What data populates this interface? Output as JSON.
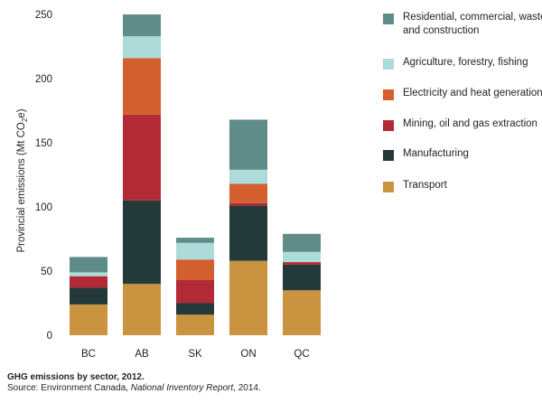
{
  "chart_data": {
    "type": "bar",
    "stacked": true,
    "categories": [
      "BC",
      "AB",
      "SK",
      "ON",
      "QC"
    ],
    "series": [
      {
        "name": "Transport",
        "color": "#c9933f",
        "values": [
          24,
          40,
          16,
          58,
          35
        ]
      },
      {
        "name": "Manufacturing",
        "color": "#243a3a",
        "values": [
          13,
          65,
          9,
          43,
          20
        ]
      },
      {
        "name": "Mining, oil and gas extraction",
        "color": "#b22a35",
        "values": [
          9,
          67,
          18,
          2,
          2
        ]
      },
      {
        "name": "Electricity and heat generation",
        "color": "#d45f2e",
        "values": [
          0,
          44,
          16,
          15,
          0
        ]
      },
      {
        "name": "Agriculture, forestry, fishing",
        "color": "#acdbd9",
        "values": [
          3,
          17,
          13,
          11,
          8
        ]
      },
      {
        "name": "Residential, commercial, waste and construction",
        "color": "#5f8b89",
        "values": [
          12,
          17,
          4,
          39,
          14
        ]
      }
    ],
    "ylabel_text": "Provincial emissions (Mt CO",
    "ylabel_sub": "2",
    "ylabel_end": "e)",
    "yticks": [
      0,
      50,
      100,
      150,
      200,
      250
    ],
    "ylim": [
      0,
      250
    ],
    "legend_position": "right"
  },
  "legend_order": [
    "Residential, commercial, waste and construction",
    "Agriculture, forestry, fishing",
    "Electricity and heat generation",
    "Mining, oil and gas extraction",
    "Manufacturing",
    "Transport"
  ],
  "caption": {
    "title": "GHG emissions by sector, 2012.",
    "source_prefix": "Source: Environment Canada, ",
    "source_italic": "National Inventory Report",
    "source_suffix": ", 2014."
  }
}
